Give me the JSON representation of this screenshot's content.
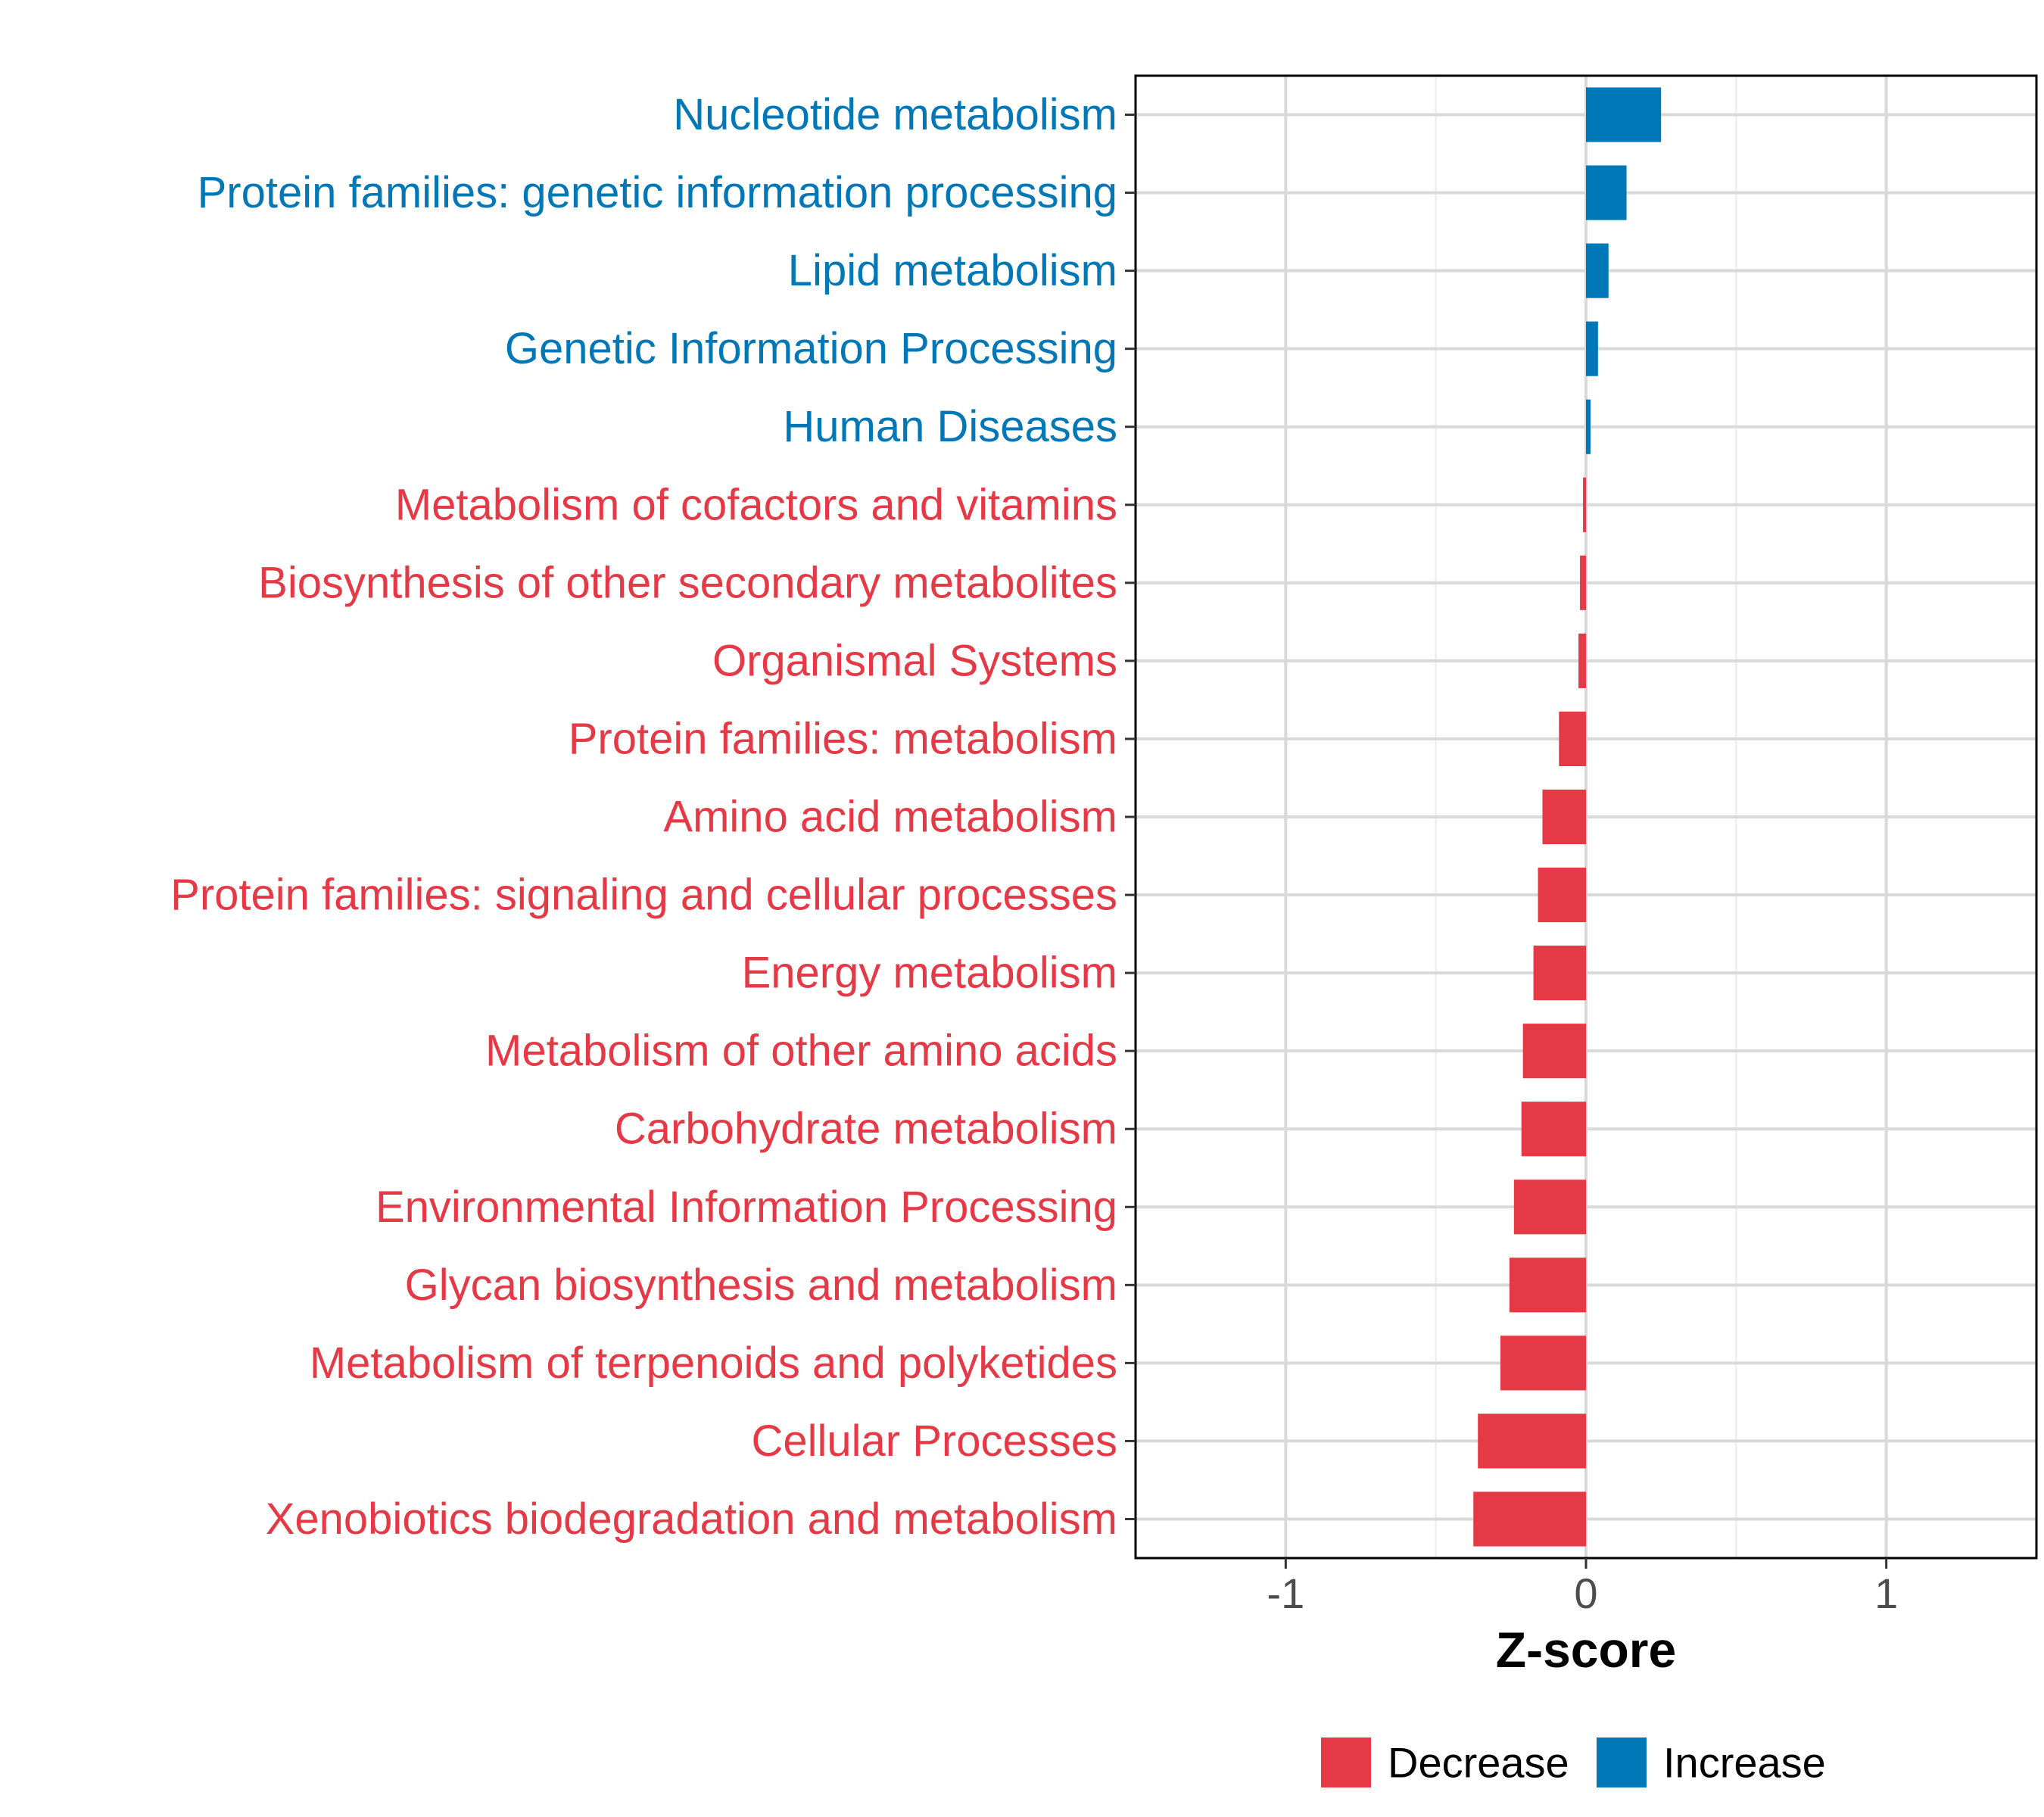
{
  "chart_data": {
    "type": "bar",
    "orientation": "horizontal",
    "categories": [
      "Nucleotide metabolism",
      "Protein families: genetic information processing",
      "Lipid metabolism",
      "Genetic Information Processing",
      "Human Diseases",
      "Metabolism of cofactors and vitamins",
      "Biosynthesis of other secondary metabolites",
      "Organismal Systems",
      "Protein families: metabolism",
      "Amino acid metabolism",
      "Protein families: signaling and cellular processes",
      "Energy metabolism",
      "Metabolism of other amino acids",
      "Carbohydrate metabolism",
      "Environmental Information Processing",
      "Glycan biosynthesis and metabolism",
      "Metabolism of terpenoids and polyketides",
      "Cellular Processes",
      "Xenobiotics biodegradation and metabolism"
    ],
    "values": [
      0.25,
      0.135,
      0.075,
      0.04,
      0.015,
      -0.01,
      -0.02,
      -0.025,
      -0.09,
      -0.145,
      -0.16,
      -0.175,
      -0.21,
      -0.215,
      -0.24,
      -0.255,
      -0.285,
      -0.36,
      -0.375
    ],
    "groups": [
      "Increase",
      "Increase",
      "Increase",
      "Increase",
      "Increase",
      "Decrease",
      "Decrease",
      "Decrease",
      "Decrease",
      "Decrease",
      "Decrease",
      "Decrease",
      "Decrease",
      "Decrease",
      "Decrease",
      "Decrease",
      "Decrease",
      "Decrease",
      "Decrease"
    ],
    "title": "",
    "xlabel": "Z-score",
    "ylabel": "",
    "xlim": [
      -1.5,
      1.5
    ],
    "xticks": [
      -1,
      0,
      1
    ],
    "xtick_labels": [
      "-1",
      "0",
      "1"
    ],
    "grid": true,
    "legend_position": "bottom",
    "legend": [
      {
        "label": "Decrease",
        "color": "#e63946"
      },
      {
        "label": "Increase",
        "color": "#0077b6"
      }
    ],
    "colors": {
      "Decrease": "#e63946",
      "Increase": "#0077b6"
    }
  }
}
